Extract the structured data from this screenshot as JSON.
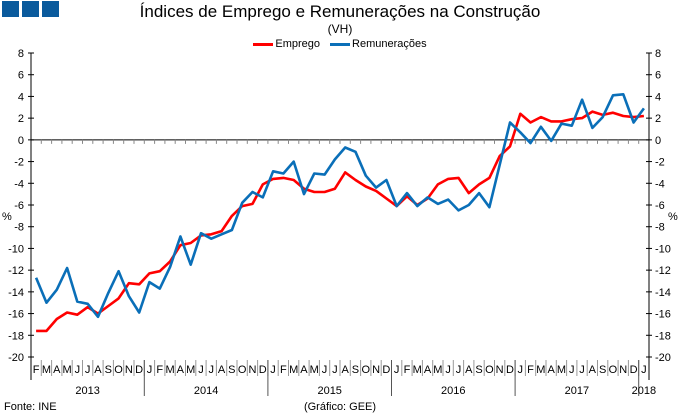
{
  "header": {
    "title": "Índices de Emprego e Remunerações na Construção",
    "subtitle": "(VH)"
  },
  "footer": {
    "source": "Fonte: INE",
    "credit": "(Gráfico: GEE)"
  },
  "colors": {
    "emprego": "#ff0000",
    "remuneracoes": "#0a6fb8",
    "logo": "#0a5a9c"
  },
  "chart_data": {
    "type": "line",
    "title": "Índices de Emprego e Remunerações na Construção",
    "subtitle": "(VH)",
    "ylabel_left": "%",
    "ylabel_right": "%",
    "ylim": [
      -20,
      8
    ],
    "yticks": [
      8,
      6,
      4,
      2,
      0,
      -2,
      -4,
      -6,
      -8,
      -10,
      -12,
      -14,
      -16,
      -18,
      -20
    ],
    "legend_position": "top-center",
    "grid": false,
    "x_month_labels": [
      "F",
      "M",
      "A",
      "M",
      "J",
      "J",
      "A",
      "S",
      "O",
      "N",
      "D",
      "J",
      "F",
      "M",
      "A",
      "M",
      "J",
      "J",
      "A",
      "S",
      "O",
      "N",
      "D",
      "J",
      "F",
      "M",
      "A",
      "M",
      "J",
      "J",
      "A",
      "S",
      "O",
      "N",
      "D",
      "J",
      "F",
      "M",
      "A",
      "M",
      "J",
      "J",
      "A",
      "S",
      "O",
      "N",
      "D",
      "J",
      "F",
      "M",
      "A",
      "M",
      "J",
      "J",
      "A",
      "S",
      "O",
      "N",
      "D",
      "J"
    ],
    "years": [
      {
        "label": "2013",
        "start": 0,
        "end": 11
      },
      {
        "label": "2014",
        "start": 11,
        "end": 23
      },
      {
        "label": "2015",
        "start": 23,
        "end": 35
      },
      {
        "label": "2016",
        "start": 35,
        "end": 47
      },
      {
        "label": "2017",
        "start": 47,
        "end": 59
      },
      {
        "label": "2018",
        "start": 59,
        "end": 60
      }
    ],
    "series": [
      {
        "name": "Emprego",
        "color": "#ff0000",
        "values": [
          -17.6,
          -17.6,
          -16.5,
          -15.9,
          -16.1,
          -15.4,
          -16.0,
          -15.3,
          -14.6,
          -13.2,
          -13.3,
          -12.3,
          -12.1,
          -11.2,
          -9.7,
          -9.5,
          -8.8,
          -8.7,
          -8.4,
          -7.0,
          -6.1,
          -5.9,
          -4.1,
          -3.6,
          -3.5,
          -3.7,
          -4.5,
          -4.8,
          -4.8,
          -4.5,
          -3.0,
          -3.7,
          -4.3,
          -4.7,
          -5.4,
          -6.1,
          -5.2,
          -6.0,
          -5.4,
          -4.1,
          -3.6,
          -3.5,
          -4.9,
          -4.1,
          -3.5,
          -1.5,
          -0.6,
          2.4,
          1.6,
          2.1,
          1.7,
          1.7,
          1.9,
          2.0,
          2.6,
          2.3,
          2.5,
          2.2,
          2.1,
          2.2
        ]
      },
      {
        "name": "Remunerações",
        "color": "#0a6fb8",
        "values": [
          -12.7,
          -15.0,
          -13.8,
          -11.8,
          -14.9,
          -15.1,
          -16.3,
          -14.1,
          -12.1,
          -14.4,
          -15.9,
          -13.1,
          -13.7,
          -11.7,
          -8.9,
          -11.5,
          -8.6,
          -9.1,
          -8.7,
          -8.3,
          -5.8,
          -4.8,
          -5.3,
          -2.9,
          -3.1,
          -2.0,
          -5.0,
          -3.1,
          -3.2,
          -1.8,
          -0.7,
          -1.1,
          -3.3,
          -4.4,
          -3.7,
          -6.1,
          -4.9,
          -6.1,
          -5.3,
          -5.9,
          -5.5,
          -6.5,
          -6.0,
          -4.9,
          -6.2,
          -2.3,
          1.6,
          0.7,
          -0.3,
          1.2,
          -0.1,
          1.5,
          1.3,
          3.7,
          1.1,
          2.1,
          4.1,
          4.2,
          1.6,
          2.9
        ]
      }
    ]
  }
}
